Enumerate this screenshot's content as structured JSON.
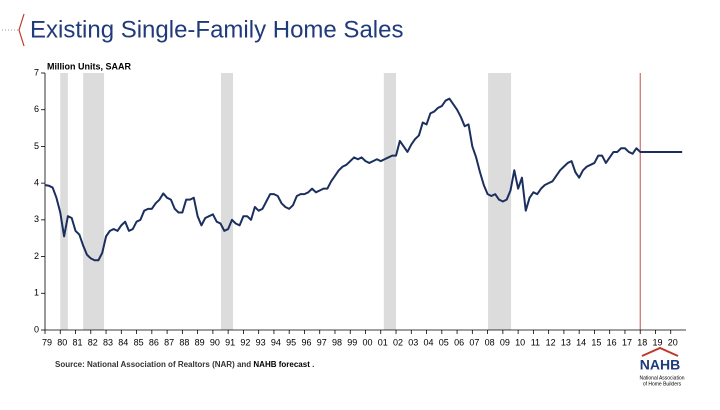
{
  "chart_data": {
    "type": "line",
    "title": "Existing Single-Family Home Sales",
    "y_label": "Million Units, SAAR",
    "source": [
      "Source: National Association of Realtors (NAR) and ",
      "NAHB forecast",
      " ."
    ],
    "logo": {
      "name": "NAHB",
      "subtitle": [
        "National Association",
        "of Home Builders"
      ]
    },
    "color": "#1b2f5e",
    "forecast_start": 2018,
    "forecast_color": "#c0504d",
    "shaded_periods": [
      [
        1980.0,
        1980.5
      ],
      [
        1981.5,
        1982.87
      ],
      [
        1990.53,
        1991.32
      ],
      [
        2001.2,
        2002.0
      ],
      [
        2008.03,
        2009.54
      ]
    ],
    "x": [
      1979,
      1979.25,
      1979.5,
      1979.75,
      1980,
      1980.25,
      1980.5,
      1980.75,
      1981,
      1981.25,
      1981.5,
      1981.75,
      1982,
      1982.25,
      1982.5,
      1982.75,
      1983,
      1983.25,
      1983.5,
      1983.75,
      1984,
      1984.25,
      1984.5,
      1984.75,
      1985,
      1985.25,
      1985.5,
      1985.75,
      1986,
      1986.25,
      1986.5,
      1986.75,
      1987,
      1987.25,
      1987.5,
      1987.75,
      1988,
      1988.25,
      1988.5,
      1988.75,
      1989,
      1989.25,
      1989.5,
      1989.75,
      1990,
      1990.25,
      1990.5,
      1990.75,
      1991,
      1991.25,
      1991.5,
      1991.75,
      1992,
      1992.25,
      1992.5,
      1992.75,
      1993,
      1993.25,
      1993.5,
      1993.75,
      1994,
      1994.25,
      1994.5,
      1994.75,
      1995,
      1995.25,
      1995.5,
      1995.75,
      1996,
      1996.25,
      1996.5,
      1996.75,
      1997,
      1997.25,
      1997.5,
      1997.75,
      1998,
      1998.25,
      1998.5,
      1998.75,
      1999,
      1999.25,
      1999.5,
      1999.75,
      2000,
      2000.25,
      2000.5,
      2000.75,
      2001,
      2001.25,
      2001.5,
      2001.75,
      2002,
      2002.25,
      2002.5,
      2002.75,
      2003,
      2003.25,
      2003.5,
      2003.75,
      2004,
      2004.25,
      2004.5,
      2004.75,
      2005,
      2005.25,
      2005.5,
      2005.75,
      2006,
      2006.25,
      2006.5,
      2006.75,
      2007,
      2007.25,
      2007.5,
      2007.75,
      2008,
      2008.25,
      2008.5,
      2008.75,
      2009,
      2009.25,
      2009.5,
      2009.75,
      2010,
      2010.25,
      2010.5,
      2010.75,
      2011,
      2011.25,
      2011.5,
      2011.75,
      2012,
      2012.25,
      2012.5,
      2012.75,
      2013,
      2013.25,
      2013.5,
      2013.75,
      2014,
      2014.25,
      2014.5,
      2014.75,
      2015,
      2015.25,
      2015.5,
      2015.75,
      2016,
      2016.25,
      2016.5,
      2016.75,
      2017,
      2017.25,
      2017.5,
      2017.75,
      2018,
      2018.25,
      2018.5,
      2018.75,
      2019,
      2019.25,
      2019.5,
      2019.75,
      2020,
      2020.25,
      2020.5,
      2020.75
    ],
    "values": [
      3.95,
      3.93,
      3.88,
      3.6,
      3.2,
      2.55,
      3.1,
      3.05,
      2.7,
      2.6,
      2.3,
      2.05,
      1.95,
      1.9,
      1.9,
      2.1,
      2.55,
      2.7,
      2.75,
      2.7,
      2.85,
      2.95,
      2.7,
      2.75,
      2.95,
      3.0,
      3.25,
      3.3,
      3.3,
      3.45,
      3.55,
      3.72,
      3.6,
      3.55,
      3.3,
      3.2,
      3.2,
      3.55,
      3.55,
      3.6,
      3.1,
      2.85,
      3.05,
      3.1,
      3.15,
      2.95,
      2.9,
      2.7,
      2.75,
      3.0,
      2.9,
      2.85,
      3.1,
      3.1,
      3.0,
      3.35,
      3.25,
      3.3,
      3.5,
      3.7,
      3.7,
      3.65,
      3.45,
      3.35,
      3.3,
      3.4,
      3.65,
      3.7,
      3.7,
      3.75,
      3.85,
      3.75,
      3.8,
      3.85,
      3.85,
      4.05,
      4.2,
      4.35,
      4.45,
      4.5,
      4.6,
      4.7,
      4.65,
      4.7,
      4.6,
      4.55,
      4.6,
      4.65,
      4.6,
      4.65,
      4.7,
      4.75,
      4.75,
      5.15,
      5.0,
      4.85,
      5.05,
      5.2,
      5.3,
      5.65,
      5.6,
      5.9,
      5.95,
      6.05,
      6.1,
      6.25,
      6.3,
      6.15,
      6.0,
      5.8,
      5.55,
      5.6,
      5.0,
      4.7,
      4.3,
      3.95,
      3.7,
      3.65,
      3.7,
      3.55,
      3.5,
      3.55,
      3.8,
      4.35,
      3.85,
      4.15,
      3.25,
      3.6,
      3.75,
      3.7,
      3.85,
      3.95,
      4.0,
      4.05,
      4.2,
      4.35,
      4.45,
      4.55,
      4.6,
      4.3,
      4.15,
      4.35,
      4.45,
      4.5,
      4.55,
      4.75,
      4.75,
      4.55,
      4.7,
      4.85,
      4.85,
      4.95,
      4.95,
      4.85,
      4.8,
      4.95,
      4.85,
      4.85,
      4.85,
      4.85,
      4.85,
      4.85,
      4.85,
      4.85,
      4.85,
      4.85,
      4.85,
      4.85
    ],
    "xlim": [
      1979,
      2021
    ],
    "ylim": [
      0,
      7
    ],
    "yticks": [
      0,
      1,
      2,
      3,
      4,
      5,
      6,
      7
    ],
    "xticks": [
      {
        "value": 1979,
        "label": "79"
      },
      {
        "value": 1980,
        "label": "80"
      },
      {
        "value": 1981,
        "label": "81"
      },
      {
        "value": 1982,
        "label": "82"
      },
      {
        "value": 1983,
        "label": "83"
      },
      {
        "value": 1984,
        "label": "84"
      },
      {
        "value": 1985,
        "label": "85"
      },
      {
        "value": 1986,
        "label": "86"
      },
      {
        "value": 1987,
        "label": "87"
      },
      {
        "value": 1988,
        "label": "88"
      },
      {
        "value": 1989,
        "label": "89"
      },
      {
        "value": 1990,
        "label": "90"
      },
      {
        "value": 1991,
        "label": "91"
      },
      {
        "value": 1992,
        "label": "92"
      },
      {
        "value": 1993,
        "label": "93"
      },
      {
        "value": 1994,
        "label": "94"
      },
      {
        "value": 1995,
        "label": "95"
      },
      {
        "value": 1996,
        "label": "96"
      },
      {
        "value": 1997,
        "label": "97"
      },
      {
        "value": 1998,
        "label": "98"
      },
      {
        "value": 1999,
        "label": "99"
      },
      {
        "value": 2000,
        "label": "00"
      },
      {
        "value": 2001,
        "label": "01"
      },
      {
        "value": 2002,
        "label": "02"
      },
      {
        "value": 2003,
        "label": "03"
      },
      {
        "value": 2004,
        "label": "04"
      },
      {
        "value": 2005,
        "label": "05"
      },
      {
        "value": 2006,
        "label": "06"
      },
      {
        "value": 2007,
        "label": "07"
      },
      {
        "value": 2008,
        "label": "08"
      },
      {
        "value": 2009,
        "label": "09"
      },
      {
        "value": 2010,
        "label": "10"
      },
      {
        "value": 2011,
        "label": "11"
      },
      {
        "value": 2012,
        "label": "12"
      },
      {
        "value": 2013,
        "label": "13"
      },
      {
        "value": 2014,
        "label": "14"
      },
      {
        "value": 2015,
        "label": "15"
      },
      {
        "value": 2016,
        "label": "16"
      },
      {
        "value": 2017,
        "label": "17"
      },
      {
        "value": 2018,
        "label": "18"
      },
      {
        "value": 2019,
        "label": "19"
      },
      {
        "value": 2020,
        "label": "20"
      }
    ]
  }
}
